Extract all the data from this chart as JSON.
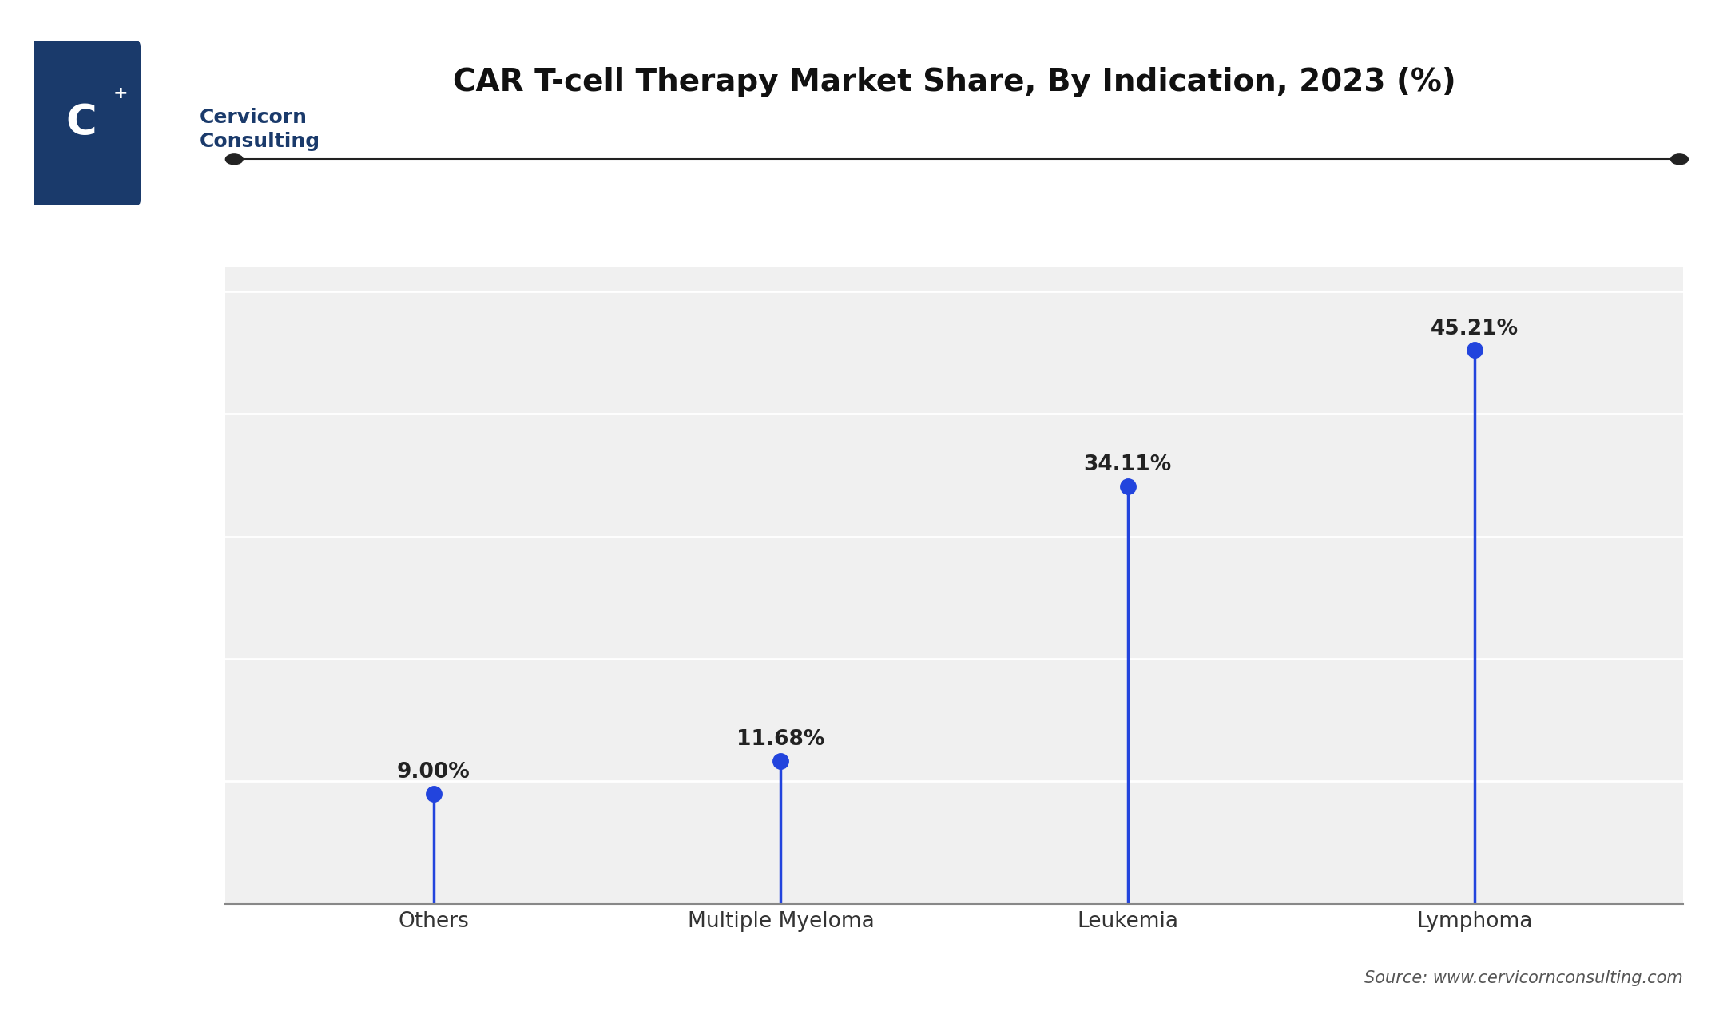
{
  "title": "CAR T-cell Therapy Market Share, By Indication, 2023 (%)",
  "categories": [
    "Others",
    "Multiple Myeloma",
    "Leukemia",
    "Lymphoma"
  ],
  "values": [
    9.0,
    11.68,
    34.11,
    45.21
  ],
  "labels": [
    "9.00%",
    "11.68%",
    "34.11%",
    "45.21%"
  ],
  "line_color": "#2244dd",
  "marker_color": "#2244dd",
  "marker_size": 14,
  "ylim": [
    0,
    52
  ],
  "yticks": [
    10,
    20,
    30,
    40,
    50
  ],
  "background_color": "#ffffff",
  "plot_bg_color": "#f0f0f0",
  "grid_color": "#ffffff",
  "title_fontsize": 28,
  "label_fontsize": 19,
  "tick_fontsize": 19,
  "source_text": "Source: www.cervicornconsulting.com",
  "source_fontsize": 15,
  "top_line_color": "#222222",
  "logo_box_color": "#1a3a6b",
  "logo_text_color": "#ffffff",
  "brand_name": "Cervicorn\nConsulting",
  "brand_color": "#1a3a6b"
}
